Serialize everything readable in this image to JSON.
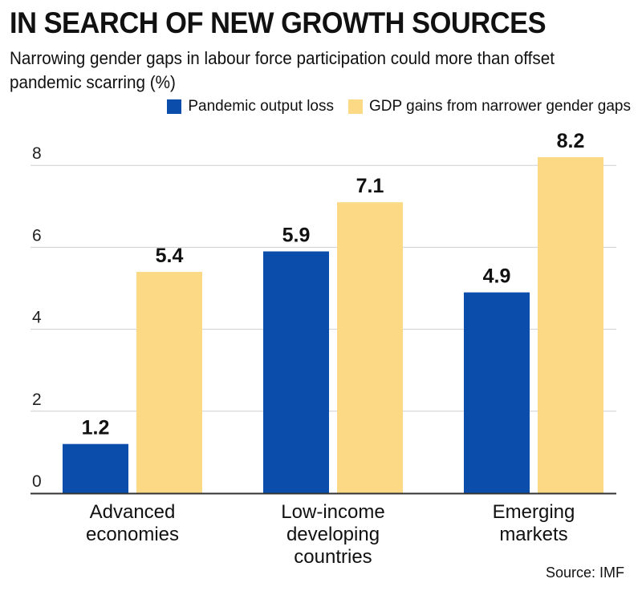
{
  "header": {
    "title": "IN SEARCH OF NEW GROWTH SOURCES",
    "subtitle": "Narrowing gender gaps in labour force participation could more than offset pandemic scarring (%)"
  },
  "colors": {
    "series_blue": "#0a4dab",
    "series_yellow": "#fbd985",
    "grid": "#cfcfcf",
    "axis": "#333333"
  },
  "chart_data": {
    "type": "bar",
    "categories": [
      "Advanced economies",
      "Low-income developing countries",
      "Emerging markets"
    ],
    "category_lines": [
      [
        "Advanced",
        "economies"
      ],
      [
        "Low-income",
        "developing",
        "countries"
      ],
      [
        "Emerging",
        "markets"
      ]
    ],
    "series": [
      {
        "name": "Pandemic output loss",
        "values": [
          1.2,
          5.9,
          4.9
        ],
        "color": "#0a4dab"
      },
      {
        "name": "GDP gains from narrower gender gaps",
        "values": [
          5.4,
          7.1,
          8.2
        ],
        "color": "#fbd985"
      }
    ],
    "yticks": [
      0,
      2,
      4,
      6,
      8
    ],
    "ylim": [
      0,
      8.2
    ],
    "grid": true,
    "legend_position": "top-right",
    "data_labels": true
  },
  "footer": {
    "source": "Source: IMF"
  }
}
